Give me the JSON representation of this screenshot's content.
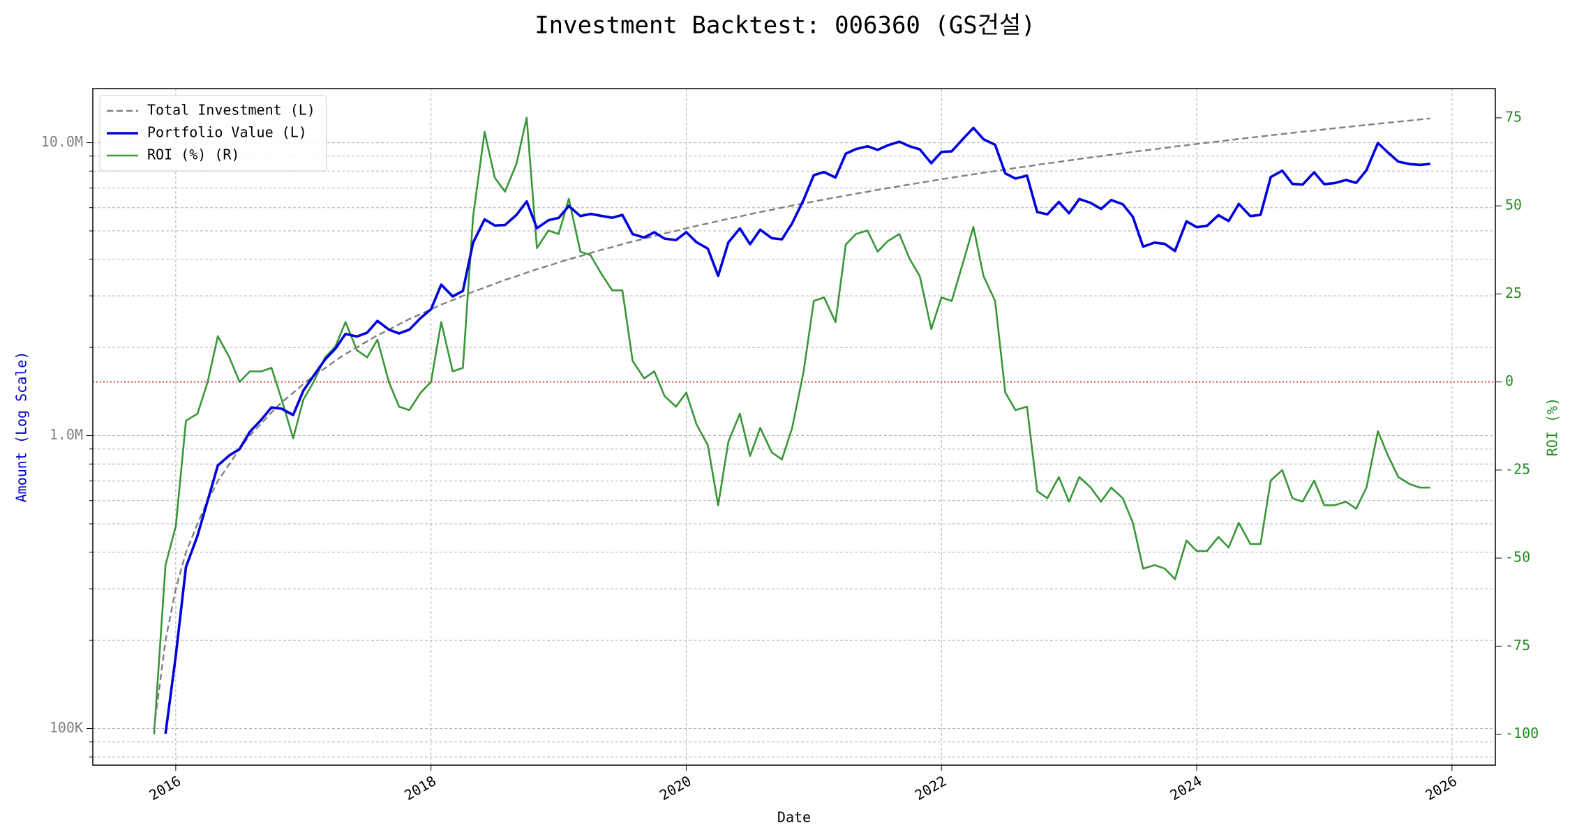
{
  "chart_data": {
    "type": "line",
    "title": "Investment Backtest: 006360 (GS건설)",
    "xlabel": "Date",
    "ylabel": "Amount (Log Scale)",
    "y2label": "ROI (%)",
    "yscale": "log",
    "grid": true,
    "legend": "upper left",
    "xlim": [
      2015.35,
      2026.34
    ],
    "xticks": [
      2016,
      2018,
      2020,
      2022,
      2024,
      2026
    ],
    "ylim": [
      75000,
      15300000
    ],
    "yticks": [
      {
        "value": 100000,
        "label": "100K"
      },
      {
        "value": 1000000,
        "label": "1.0M"
      },
      {
        "value": 10000000,
        "label": "10.0M"
      }
    ],
    "y2lim": [
      -108.8,
      83.3
    ],
    "y2ticks": [
      -100,
      -75,
      -50,
      -25,
      0,
      25,
      50,
      75
    ],
    "reference_line": {
      "value": 0,
      "axis": "y2",
      "color": "#cc0000"
    },
    "x": [
      2015.83,
      2015.92,
      2016.0,
      2016.08,
      2016.17,
      2016.25,
      2016.33,
      2016.42,
      2016.5,
      2016.58,
      2016.67,
      2016.75,
      2016.83,
      2016.92,
      2017.0,
      2017.08,
      2017.17,
      2017.25,
      2017.33,
      2017.42,
      2017.5,
      2017.58,
      2017.67,
      2017.75,
      2017.83,
      2017.92,
      2018.0,
      2018.08,
      2018.17,
      2018.25,
      2018.33,
      2018.42,
      2018.5,
      2018.58,
      2018.67,
      2018.75,
      2018.83,
      2018.92,
      2019.0,
      2019.08,
      2019.17,
      2019.25,
      2019.33,
      2019.42,
      2019.5,
      2019.58,
      2019.67,
      2019.75,
      2019.83,
      2019.92,
      2020.0,
      2020.08,
      2020.17,
      2020.25,
      2020.33,
      2020.42,
      2020.5,
      2020.58,
      2020.67,
      2020.75,
      2020.83,
      2020.92,
      2021.0,
      2021.08,
      2021.17,
      2021.25,
      2021.33,
      2021.42,
      2021.5,
      2021.58,
      2021.67,
      2021.75,
      2021.83,
      2021.92,
      2022.0,
      2022.08,
      2022.17,
      2022.25,
      2022.33,
      2022.42,
      2022.5,
      2022.58,
      2022.67,
      2022.75,
      2022.83,
      2022.92,
      2023.0,
      2023.08,
      2023.17,
      2023.25,
      2023.33,
      2023.42,
      2023.5,
      2023.58,
      2023.67,
      2023.75,
      2023.83,
      2023.92,
      2024.0,
      2024.08,
      2024.17,
      2024.25,
      2024.33,
      2024.42,
      2024.5,
      2024.58,
      2024.67,
      2024.75,
      2024.83,
      2024.92,
      2025.0,
      2025.08,
      2025.17,
      2025.25,
      2025.33,
      2025.42,
      2025.5,
      2025.58,
      2025.67,
      2025.75,
      2025.83
    ],
    "series": [
      {
        "name": "Total Investment (L)",
        "color": "#808080",
        "dash": "dashed",
        "axis": "y",
        "values": [
          100000,
          200000,
          300000,
          400000,
          500000,
          600000,
          700000,
          800000,
          900000,
          1000000,
          1100000,
          1200000,
          1300000,
          1400000,
          1500000,
          1600000,
          1700000,
          1800000,
          1900000,
          2000000,
          2100000,
          2200000,
          2300000,
          2400000,
          2500000,
          2600000,
          2700000,
          2800000,
          2900000,
          3000000,
          3100000,
          3200000,
          3300000,
          3400000,
          3500000,
          3600000,
          3700000,
          3800000,
          3900000,
          4000000,
          4100000,
          4200000,
          4300000,
          4400000,
          4500000,
          4600000,
          4700000,
          4800000,
          4900000,
          5000000,
          5100000,
          5200000,
          5300000,
          5400000,
          5500000,
          5600000,
          5700000,
          5800000,
          5900000,
          6000000,
          6100000,
          6200000,
          6300000,
          6400000,
          6500000,
          6600000,
          6700000,
          6800000,
          6900000,
          7000000,
          7100000,
          7200000,
          7300000,
          7400000,
          7500000,
          7600000,
          7700000,
          7800000,
          7900000,
          8000000,
          8100000,
          8200000,
          8300000,
          8400000,
          8500000,
          8600000,
          8700000,
          8800000,
          8900000,
          9000000,
          9100000,
          9200000,
          9300000,
          9400000,
          9500000,
          9600000,
          9700000,
          9800000,
          9900000,
          10000000,
          10100000,
          10200000,
          10300000,
          10400000,
          10500000,
          10600000,
          10700000,
          10800000,
          10900000,
          11000000,
          11100000,
          11200000,
          11300000,
          11400000,
          11500000,
          11600000,
          11700000,
          11800000,
          11900000,
          12000000,
          12100000
        ]
      },
      {
        "name": "Portfolio Value (L)",
        "color": "#0000dd",
        "axis": "y",
        "values": [
          null,
          96000,
          177000,
          356000,
          455000,
          600000,
          791000,
          856000,
          900000,
          1030000,
          1133000,
          1248000,
          1235000,
          1176000,
          1425000,
          1600000,
          1819000,
          1980000,
          2223000,
          2180000,
          2247000,
          2464000,
          2300000,
          2232000,
          2300000,
          2522000,
          2700000,
          3276000,
          2987000,
          3120000,
          4557000,
          5472000,
          5214000,
          5236000,
          5670000,
          6300000,
          5106000,
          5434000,
          5538000,
          6080000,
          5617000,
          5712000,
          5633000,
          5544000,
          5670000,
          4876000,
          4747000,
          4944000,
          4704000,
          4650000,
          4947000,
          4576000,
          4346000,
          3510000,
          4565000,
          5096000,
          4503000,
          5046000,
          4720000,
          4680000,
          5307000,
          6386000,
          7749000,
          7936000,
          7605000,
          9174000,
          9514000,
          9724000,
          9453000,
          9800000,
          10082000,
          9720000,
          9490000,
          8510000,
          9300000,
          9348000,
          10318000,
          11232000,
          10270000,
          9840000,
          7857000,
          7544000,
          7719000,
          5796000,
          5695000,
          6278000,
          5742000,
          6424000,
          6230000,
          5940000,
          6370000,
          6164000,
          5580000,
          4418000,
          4560000,
          4512000,
          4268000,
          5390000,
          5148000,
          5200000,
          5656000,
          5406000,
          6180000,
          5616000,
          5670000,
          7632000,
          8025000,
          7236000,
          7194000,
          7920000,
          7215000,
          7280000,
          7458000,
          7296000,
          8050000,
          9976000,
          9243000,
          8614000,
          8449000,
          8400000,
          8470000
        ]
      },
      {
        "name": "ROI (%) (R)",
        "color": "#228b22",
        "axis": "y2",
        "values": [
          -100,
          -52,
          -41,
          -11,
          -9,
          0,
          13,
          7,
          0,
          3,
          3,
          4,
          -5,
          -16,
          -5,
          0,
          7,
          10,
          17,
          9,
          7,
          12,
          0,
          -7,
          -8,
          -3,
          0,
          17,
          3,
          4,
          47,
          71,
          58,
          54,
          62,
          75,
          38,
          43,
          42,
          52,
          37,
          36,
          31,
          26,
          26,
          6,
          1,
          3,
          -4,
          -7,
          -3,
          -12,
          -18,
          -35,
          -17,
          -9,
          -21,
          -13,
          -20,
          -22,
          -13,
          3,
          23,
          24,
          17,
          39,
          42,
          43,
          37,
          40,
          42,
          35,
          30,
          15,
          24,
          23,
          34,
          44,
          30,
          23,
          -3,
          -8,
          -7,
          -31,
          -33,
          -27,
          -34,
          -27,
          -30,
          -34,
          -30,
          -33,
          -40,
          -53,
          -52,
          -53,
          -56,
          -45,
          -48,
          -48,
          -44,
          -47,
          -40,
          -46,
          -46,
          -28,
          -25,
          -33,
          -34,
          -28,
          -35,
          -35,
          -34,
          -36,
          -30,
          -14,
          -21,
          -27,
          -29,
          -30,
          -30
        ]
      }
    ]
  }
}
